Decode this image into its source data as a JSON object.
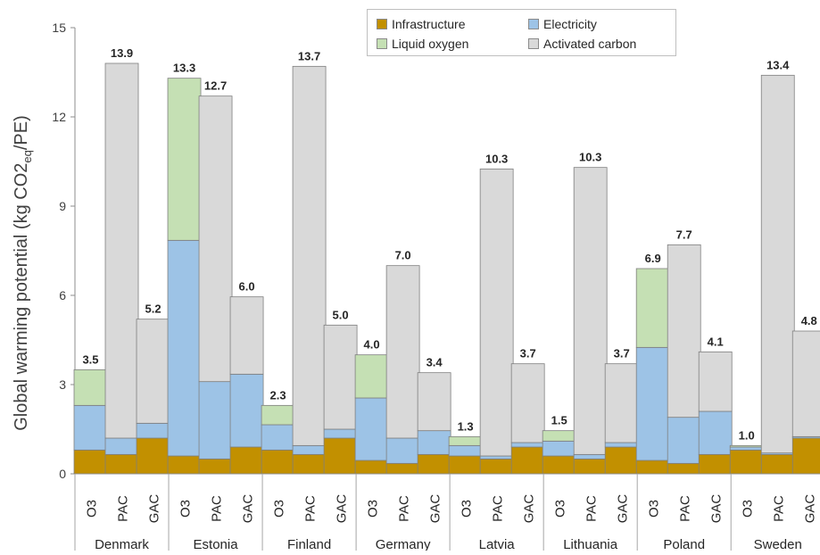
{
  "chart_data": {
    "type": "bar",
    "stacked": true,
    "ylabel_main": "Global warming potential (kg CO2",
    "ylabel_sub": "eq",
    "ylabel_tail": "/PE)",
    "ylim": [
      0,
      15
    ],
    "yticks": [
      0,
      3,
      6,
      9,
      12,
      15
    ],
    "legend_position": "top-center",
    "grid": false,
    "countries": [
      "Denmark",
      "Estonia",
      "Finland",
      "Germany",
      "Latvia",
      "Lithuania",
      "Poland",
      "Sweden"
    ],
    "methods": [
      "O3",
      "PAC",
      "GAC"
    ],
    "series": [
      {
        "name": "Infrastructure",
        "color": "#c29000",
        "values": [
          0.8,
          0.65,
          1.2,
          0.6,
          0.5,
          0.9,
          0.8,
          0.65,
          1.2,
          0.45,
          0.35,
          0.65,
          0.6,
          0.5,
          0.9,
          0.6,
          0.5,
          0.9,
          0.45,
          0.35,
          0.65,
          0.8,
          0.65,
          1.2
        ]
      },
      {
        "name": "Electricity",
        "color": "#9dc3e6",
        "values": [
          1.5,
          0.55,
          0.5,
          7.25,
          2.6,
          2.45,
          0.85,
          0.3,
          0.3,
          2.1,
          0.85,
          0.8,
          0.35,
          0.1,
          0.15,
          0.5,
          0.15,
          0.15,
          3.8,
          1.55,
          1.45,
          0.1,
          0.05,
          0.05
        ]
      },
      {
        "name": "Liquid oxygen",
        "color": "#c5e0b4",
        "values": [
          1.2,
          0.0,
          0.0,
          5.45,
          0.0,
          0.0,
          0.65,
          0.0,
          0.0,
          1.45,
          0.0,
          0.0,
          0.3,
          0.0,
          0.0,
          0.35,
          0.0,
          0.0,
          2.65,
          0.0,
          0.0,
          0.05,
          0.0,
          0.0
        ]
      },
      {
        "name": "Activated carbon",
        "color": "#d9d9d9",
        "values": [
          0.0,
          12.6,
          3.5,
          0.0,
          9.6,
          2.6,
          0.0,
          12.75,
          3.5,
          0.0,
          5.8,
          1.95,
          0.0,
          9.65,
          2.65,
          0.0,
          9.65,
          2.65,
          0.0,
          5.8,
          2.0,
          0.0,
          12.7,
          3.55
        ]
      }
    ],
    "totals": [
      "3.5",
      "13.9",
      "5.2",
      "13.3",
      "12.7",
      "6.0",
      "2.3",
      "13.7",
      "5.0",
      "4.0",
      "7.0",
      "3.4",
      "1.3",
      "10.3",
      "3.7",
      "1.5",
      "10.3",
      "3.7",
      "6.9",
      "7.7",
      "4.1",
      "1.0",
      "13.4",
      "4.8"
    ]
  }
}
